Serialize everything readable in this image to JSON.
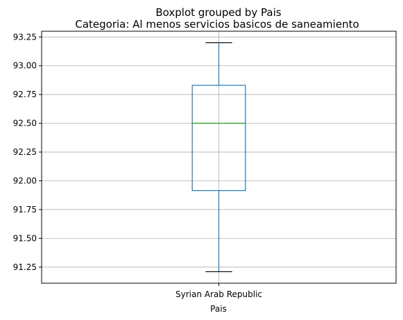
{
  "chart_data": {
    "type": "boxplot",
    "suptitle": "Boxplot grouped by Pais",
    "title": "Categoria: Al menos servicios basicos de saneamiento",
    "xlabel": "Pais",
    "ylabel": "",
    "categories": [
      "Syrian Arab Republic"
    ],
    "boxes": [
      {
        "category": "Syrian Arab Republic",
        "whisker_low": 91.21,
        "q1": 91.915,
        "median": 92.5,
        "q3": 92.83,
        "whisker_high": 93.2
      }
    ],
    "ylim": [
      91.11,
      93.3
    ],
    "yticks": [
      91.25,
      91.5,
      91.75,
      92.0,
      92.25,
      92.5,
      92.75,
      93.0,
      93.25
    ],
    "ytick_labels": [
      "91.25",
      "91.50",
      "91.75",
      "92.00",
      "92.25",
      "92.50",
      "92.75",
      "93.00",
      "93.25"
    ],
    "grid": true,
    "colors": {
      "box": "#1f77b4",
      "median": "#2ca02c",
      "whisker": "#1f77b4",
      "cap": "#000000",
      "grid": "#b0b0b0"
    }
  }
}
